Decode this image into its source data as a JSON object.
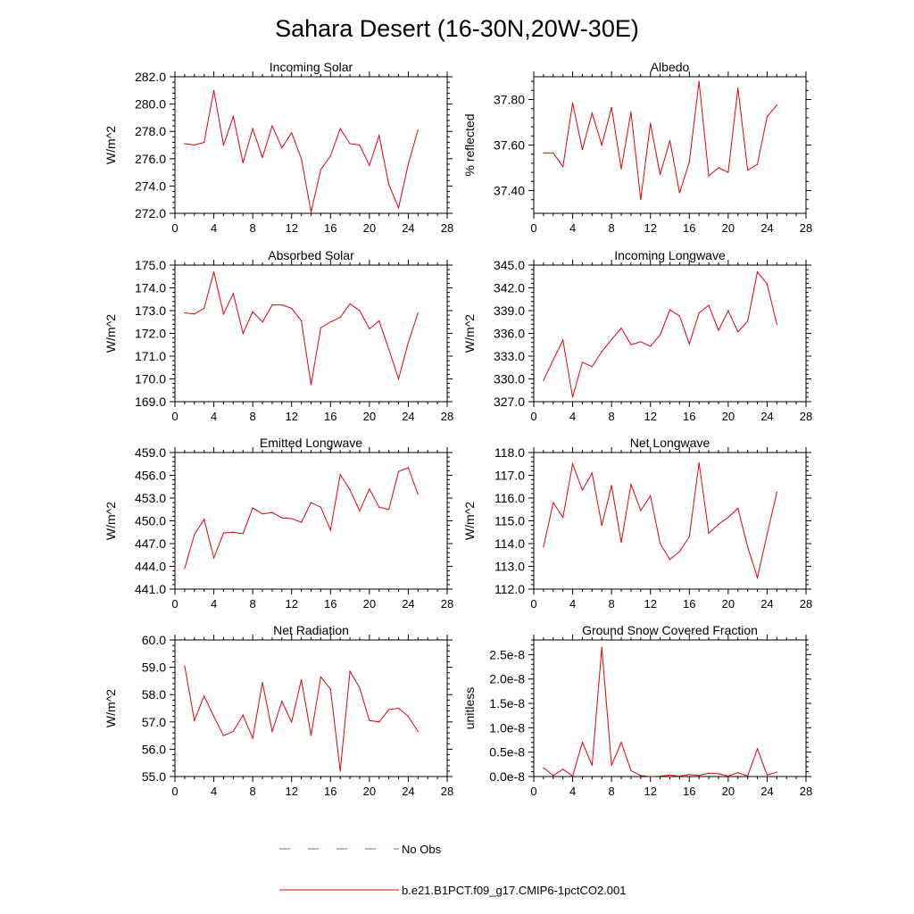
{
  "figure": {
    "title": "Sahara Desert (16-30N,20W-30E)"
  },
  "legend": {
    "entries": [
      {
        "label": "No Obs",
        "color": "#5b6ff0",
        "style": "dashed"
      },
      {
        "label": "b.e21.B1PCT.f09_g17.CMIP6-1pctCO2.001",
        "color": "#e0000b",
        "style": "solid"
      }
    ]
  },
  "colors": {
    "series": "#e0000b",
    "obs": "#5b6ff0",
    "axis": "#000000"
  },
  "chart_data": [
    {
      "type": "line",
      "title": "Incoming Solar",
      "ylabel": "W/m^2",
      "xlim": [
        0,
        28
      ],
      "xticks": [
        0,
        4,
        8,
        12,
        16,
        20,
        24,
        28
      ],
      "ylim": [
        272.0,
        282.0
      ],
      "yticks": [
        272.0,
        274.0,
        276.0,
        278.0,
        280.0,
        282.0
      ],
      "ytick_labels": [
        "272.0",
        "274.0",
        "276.0",
        "278.0",
        "280.0",
        "282.0"
      ],
      "x": [
        1,
        2,
        3,
        4,
        5,
        6,
        7,
        8,
        9,
        10,
        11,
        12,
        13,
        14,
        15,
        16,
        17,
        18,
        19,
        20,
        21,
        22,
        23,
        24,
        25
      ],
      "values": [
        277.1,
        277.0,
        277.2,
        281.0,
        277.0,
        279.1,
        275.7,
        278.2,
        276.1,
        278.4,
        276.8,
        277.9,
        276.0,
        272.1,
        275.2,
        276.2,
        278.2,
        277.1,
        277.0,
        275.5,
        277.7,
        274.1,
        272.4,
        275.6,
        278.1
      ]
    },
    {
      "type": "line",
      "title": "Albedo",
      "ylabel": "% reflected",
      "xlim": [
        0,
        28
      ],
      "xticks": [
        0,
        4,
        8,
        12,
        16,
        20,
        24,
        28
      ],
      "ylim": [
        37.3,
        37.9
      ],
      "yticks": [
        37.4,
        37.6,
        37.8
      ],
      "ytick_labels": [
        "37.40",
        "37.60",
        "37.80"
      ],
      "x": [
        1,
        2,
        3,
        4,
        5,
        6,
        7,
        8,
        9,
        10,
        11,
        12,
        13,
        14,
        15,
        16,
        17,
        18,
        19,
        20,
        21,
        22,
        23,
        24,
        25
      ],
      "values": [
        37.565,
        37.565,
        37.505,
        37.785,
        37.58,
        37.74,
        37.6,
        37.765,
        37.495,
        37.745,
        37.36,
        37.695,
        37.47,
        37.62,
        37.39,
        37.525,
        37.88,
        37.465,
        37.5,
        37.48,
        37.85,
        37.49,
        37.515,
        37.725,
        37.775
      ]
    },
    {
      "type": "line",
      "title": "Absorbed Solar",
      "ylabel": "W/m^2",
      "xlim": [
        0,
        28
      ],
      "xticks": [
        0,
        4,
        8,
        12,
        16,
        20,
        24,
        28
      ],
      "ylim": [
        169.0,
        175.0
      ],
      "yticks": [
        169.0,
        170.0,
        171.0,
        172.0,
        173.0,
        174.0,
        175.0
      ],
      "ytick_labels": [
        "169.0",
        "170.0",
        "171.0",
        "172.0",
        "173.0",
        "174.0",
        "175.0"
      ],
      "x": [
        1,
        2,
        3,
        4,
        5,
        6,
        7,
        8,
        9,
        10,
        11,
        12,
        13,
        14,
        15,
        16,
        17,
        18,
        19,
        20,
        21,
        22,
        23,
        24,
        25
      ],
      "values": [
        172.9,
        172.85,
        173.1,
        174.7,
        172.85,
        173.75,
        172.0,
        172.95,
        172.5,
        173.25,
        173.25,
        173.1,
        172.55,
        169.75,
        172.25,
        172.5,
        172.7,
        173.3,
        173.0,
        172.2,
        172.55,
        171.3,
        170.0,
        171.6,
        172.9
      ]
    },
    {
      "type": "line",
      "title": "Incoming Longwave",
      "ylabel": "W/m^2",
      "xlim": [
        0,
        28
      ],
      "xticks": [
        0,
        4,
        8,
        12,
        16,
        20,
        24,
        28
      ],
      "ylim": [
        327.0,
        345.0
      ],
      "yticks": [
        327.0,
        330.0,
        333.0,
        336.0,
        339.0,
        342.0,
        345.0
      ],
      "ytick_labels": [
        "327.0",
        "330.0",
        "333.0",
        "336.0",
        "339.0",
        "342.0",
        "345.0"
      ],
      "x": [
        1,
        2,
        3,
        4,
        5,
        6,
        7,
        8,
        9,
        10,
        11,
        12,
        13,
        14,
        15,
        16,
        17,
        18,
        19,
        20,
        21,
        22,
        23,
        24,
        25
      ],
      "values": [
        329.8,
        332.5,
        335.1,
        327.6,
        332.2,
        331.6,
        333.6,
        335.2,
        336.7,
        334.5,
        334.9,
        334.3,
        335.8,
        339.1,
        338.3,
        334.6,
        338.7,
        339.7,
        336.4,
        339.0,
        336.2,
        337.6,
        344.1,
        342.5,
        337.2
      ]
    },
    {
      "type": "line",
      "title": "Emitted Longwave",
      "ylabel": "W/m^2",
      "xlim": [
        0,
        28
      ],
      "xticks": [
        0,
        4,
        8,
        12,
        16,
        20,
        24,
        28
      ],
      "ylim": [
        441.0,
        459.0
      ],
      "yticks": [
        441.0,
        444.0,
        447.0,
        450.0,
        453.0,
        456.0,
        459.0
      ],
      "ytick_labels": [
        "441.0",
        "444.0",
        "447.0",
        "450.0",
        "453.0",
        "456.0",
        "459.0"
      ],
      "x": [
        1,
        2,
        3,
        4,
        5,
        6,
        7,
        8,
        9,
        10,
        11,
        12,
        13,
        14,
        15,
        16,
        17,
        18,
        19,
        20,
        21,
        22,
        23,
        24,
        25
      ],
      "values": [
        443.7,
        448.2,
        450.2,
        445.1,
        448.4,
        448.5,
        448.3,
        451.7,
        450.9,
        451.1,
        450.4,
        450.3,
        449.8,
        452.4,
        451.8,
        448.8,
        456.1,
        454.1,
        451.3,
        454.2,
        451.8,
        451.5,
        456.5,
        457.0,
        453.5
      ]
    },
    {
      "type": "line",
      "title": "Net Longwave",
      "ylabel": "W/m^2",
      "xlim": [
        0,
        28
      ],
      "xticks": [
        0,
        4,
        8,
        12,
        16,
        20,
        24,
        28
      ],
      "ylim": [
        112.0,
        118.0
      ],
      "yticks": [
        112.0,
        113.0,
        114.0,
        115.0,
        116.0,
        117.0,
        118.0
      ],
      "ytick_labels": [
        "112.0",
        "113.0",
        "114.0",
        "115.0",
        "116.0",
        "117.0",
        "118.0"
      ],
      "x": [
        1,
        2,
        3,
        4,
        5,
        6,
        7,
        8,
        9,
        10,
        11,
        12,
        13,
        14,
        15,
        16,
        17,
        18,
        19,
        20,
        21,
        22,
        23,
        24,
        25
      ],
      "values": [
        113.85,
        115.8,
        115.15,
        117.5,
        116.35,
        117.1,
        114.8,
        116.55,
        114.05,
        116.6,
        115.45,
        116.1,
        114.0,
        113.3,
        113.65,
        114.3,
        117.55,
        114.45,
        114.85,
        115.15,
        115.55,
        113.85,
        112.5,
        114.4,
        116.25
      ]
    },
    {
      "type": "line",
      "title": "Net Radiation",
      "ylabel": "W/m^2",
      "xlim": [
        0,
        28
      ],
      "xticks": [
        0,
        4,
        8,
        12,
        16,
        20,
        24,
        28
      ],
      "ylim": [
        55.0,
        60.0
      ],
      "yticks": [
        55.0,
        56.0,
        57.0,
        58.0,
        59.0,
        60.0
      ],
      "ytick_labels": [
        "55.0",
        "56.0",
        "57.0",
        "58.0",
        "59.0",
        "60.0"
      ],
      "x": [
        1,
        2,
        3,
        4,
        5,
        6,
        7,
        8,
        9,
        10,
        11,
        12,
        13,
        14,
        15,
        16,
        17,
        18,
        19,
        20,
        21,
        22,
        23,
        24,
        25
      ],
      "values": [
        59.05,
        57.05,
        57.95,
        57.2,
        56.5,
        56.65,
        57.25,
        56.4,
        58.45,
        56.65,
        57.75,
        57.0,
        58.55,
        56.5,
        58.65,
        58.2,
        55.2,
        58.85,
        58.25,
        57.05,
        57.0,
        57.45,
        57.5,
        57.2,
        56.65
      ]
    },
    {
      "type": "line",
      "title": "Ground Snow Covered Fraction",
      "ylabel": "unitless",
      "xlim": [
        0,
        28
      ],
      "xticks": [
        0,
        4,
        8,
        12,
        16,
        20,
        24,
        28
      ],
      "ylim": [
        0,
        2.8e-08
      ],
      "yticks": [
        0,
        5e-09,
        1e-08,
        1.5e-08,
        2e-08,
        2.5e-08
      ],
      "ytick_labels": [
        "0.0e-8",
        "0.5e-8",
        "1.0e-8",
        "1.5e-8",
        "2.0e-8",
        "2.5e-8"
      ],
      "x": [
        1,
        2,
        3,
        4,
        5,
        6,
        7,
        8,
        9,
        10,
        11,
        12,
        13,
        14,
        15,
        16,
        17,
        18,
        19,
        20,
        21,
        22,
        23,
        24,
        25
      ],
      "values": [
        1.8e-09,
        2e-10,
        1.5e-09,
        1e-10,
        7e-09,
        2.3e-09,
        2.65e-08,
        2.3e-09,
        7e-09,
        1.2e-09,
        2e-10,
        0,
        1e-10,
        3e-10,
        1e-10,
        4e-10,
        2e-10,
        7e-10,
        6e-10,
        1e-10,
        8e-10,
        1e-10,
        5.7e-09,
        3e-10,
        9e-10
      ]
    }
  ]
}
